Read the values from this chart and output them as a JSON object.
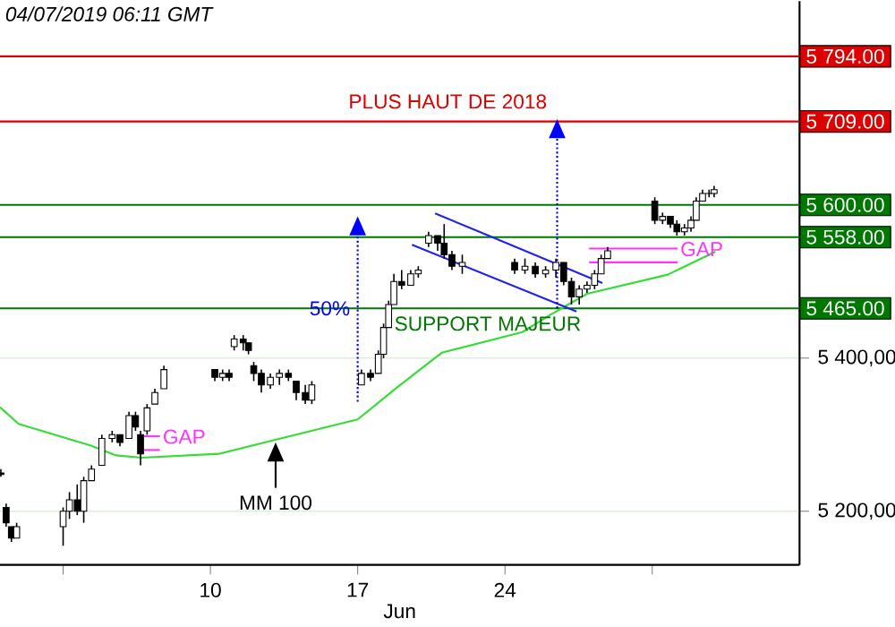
{
  "chart_data": {
    "type": "candlestick",
    "annotations": [
      "04/07/2019 06:11 GMT",
      "PLUS HAUT DE 2018",
      {
        "text": "50%",
        "x": "2019-06-17T00:00",
        "y": 5465
      },
      "SUPPORT MAJEUR",
      {
        "text": "MM 100",
        "x": "2019-06-13T02:24",
        "y": 5293
      }
    ],
    "xlabel": "Jun",
    "x": [
      "2019-05-31T01:00",
      "2019-05-31T07:00",
      "2019-05-31T13:00",
      "2019-05-31T19:00",
      "2019-06-03T00:00",
      "2019-06-03T07:12",
      "2019-06-03T16:05",
      "2019-06-03T23:31",
      "2019-06-04T08:24",
      "2019-06-04T20:10",
      "2019-06-05T07:55",
      "2019-06-05T16:48",
      "2019-06-06T03:07",
      "2019-06-06T10:34",
      "2019-06-06T16:19",
      "2019-06-06T23:46",
      "2019-06-07T08:38",
      "2019-06-07T18:58",
      "2019-06-10T05:02",
      "2019-06-10T13:55",
      "2019-06-10T21:22",
      "2019-06-11T03:07",
      "2019-06-11T13:26",
      "2019-06-11T19:26",
      "2019-06-12T01:26",
      "2019-06-12T10:05",
      "2019-06-12T20:24",
      "2019-06-13T06:43",
      "2019-06-13T17:02",
      "2019-06-14T01:55",
      "2019-06-14T12:14",
      "2019-06-14T19:41",
      "2019-06-17T04:19",
      "2019-06-17T14:38",
      "2019-06-17T23:31",
      "2019-06-18T05:31",
      "2019-06-18T11:17",
      "2019-06-18T17:17",
      "2019-06-19T02:10",
      "2019-06-19T12:29",
      "2019-06-19T21:07",
      "2019-06-20T08:53",
      "2019-06-20T19:12",
      "2019-06-21T02:38",
      "2019-06-21T11:31",
      "2019-06-21T23:17",
      "2019-06-24T11:02",
      "2019-06-24T22:48",
      "2019-06-25T10:34",
      "2019-06-25T22:19",
      "2019-06-26T10:05",
      "2019-06-26T18:58",
      "2019-06-27T03:50",
      "2019-06-27T12:43",
      "2019-06-27T21:36",
      "2019-06-28T06:14",
      "2019-06-28T13:41",
      "2019-06-28T21:07",
      "2019-07-01T02:53",
      "2019-07-01T11:46",
      "2019-07-01T20:38",
      "2019-07-02T04:05",
      "2019-07-02T12:43",
      "2019-07-02T20:10",
      "2019-07-03T02:10",
      "2019-07-03T09:22",
      "2019-07-03T16:48",
      "2019-07-03T22:34"
    ],
    "ohlc": [
      [
        5250,
        5255,
        5245,
        5248
      ],
      [
        5205,
        5210,
        5180,
        5185
      ],
      [
        5180,
        5180,
        5160,
        5165
      ],
      [
        5165,
        5185,
        5165,
        5180
      ],
      [
        5180,
        5205,
        5155,
        5200
      ],
      [
        5200,
        5225,
        5190,
        5215
      ],
      [
        5215,
        5235,
        5195,
        5200
      ],
      [
        5200,
        5245,
        5185,
        5240
      ],
      [
        5240,
        5260,
        5240,
        5255
      ],
      [
        5260,
        5300,
        5260,
        5295
      ],
      [
        5295,
        5305,
        5290,
        5300
      ],
      [
        5300,
        5300,
        5285,
        5290
      ],
      [
        5295,
        5330,
        5295,
        5325
      ],
      [
        5325,
        5330,
        5305,
        5310
      ],
      [
        5300,
        5305,
        5260,
        5275
      ],
      [
        5305,
        5340,
        5300,
        5335
      ],
      [
        5340,
        5360,
        5340,
        5355
      ],
      [
        5360,
        5390,
        5360,
        5385
      ],
      [
        5385,
        5385,
        5370,
        5375
      ],
      [
        5375,
        5385,
        5370,
        5380
      ],
      [
        5380,
        5385,
        5370,
        5375
      ],
      [
        5415,
        5430,
        5410,
        5425
      ],
      [
        5425,
        5430,
        5410,
        5420
      ],
      [
        5420,
        5420,
        5405,
        5410
      ],
      [
        5390,
        5395,
        5370,
        5380
      ],
      [
        5380,
        5385,
        5355,
        5365
      ],
      [
        5365,
        5380,
        5360,
        5375
      ],
      [
        5375,
        5385,
        5365,
        5380
      ],
      [
        5380,
        5385,
        5370,
        5375
      ],
      [
        5370,
        5370,
        5345,
        5355
      ],
      [
        5355,
        5365,
        5340,
        5345
      ],
      [
        5345,
        5370,
        5340,
        5365
      ],
      [
        5365,
        5385,
        5365,
        5380
      ],
      [
        5380,
        5385,
        5370,
        5375
      ],
      [
        5380,
        5410,
        5380,
        5405
      ],
      [
        5405,
        5445,
        5400,
        5440
      ],
      [
        5440,
        5475,
        5440,
        5470
      ],
      [
        5470,
        5510,
        5470,
        5500
      ],
      [
        5500,
        5515,
        5490,
        5495
      ],
      [
        5495,
        5515,
        5495,
        5510
      ],
      [
        5510,
        5520,
        5505,
        5515
      ],
      [
        5550,
        5565,
        5545,
        5560
      ],
      [
        5560,
        5560,
        5540,
        5550
      ],
      [
        5550,
        5575,
        5530,
        5535
      ],
      [
        5535,
        5540,
        5515,
        5520
      ],
      [
        5520,
        5535,
        5510,
        5525
      ],
      [
        5525,
        5530,
        5510,
        5515
      ],
      [
        5515,
        5530,
        5510,
        5520
      ],
      [
        5520,
        5525,
        5505,
        5510
      ],
      [
        5510,
        5520,
        5505,
        5515
      ],
      [
        5515,
        5530,
        5505,
        5525
      ],
      [
        5525,
        5525,
        5495,
        5500
      ],
      [
        5500,
        5505,
        5470,
        5480
      ],
      [
        5480,
        5495,
        5470,
        5490
      ],
      [
        5490,
        5500,
        5485,
        5495
      ],
      [
        5495,
        5515,
        5490,
        5510
      ],
      [
        5510,
        5535,
        5510,
        5530
      ],
      [
        5530,
        5545,
        5530,
        5540
      ],
      [
        5605,
        5610,
        5575,
        5580
      ],
      [
        5580,
        5590,
        5575,
        5585
      ],
      [
        5585,
        5585,
        5570,
        5575
      ],
      [
        5575,
        5580,
        5560,
        5565
      ],
      [
        5565,
        5575,
        5560,
        5570
      ],
      [
        5570,
        5585,
        5565,
        5580
      ],
      [
        5580,
        5610,
        5580,
        5605
      ],
      [
        5605,
        5620,
        5605,
        5615
      ],
      [
        5615,
        5620,
        5610,
        5615
      ],
      [
        5615,
        5625,
        5610,
        5620
      ]
    ],
    "series": [
      {
        "type": "line",
        "color": "#33dd33",
        "x": [
          "2019-05-31T00:00",
          "2019-05-31T21:07",
          "2019-06-04T06:58",
          "2019-06-05T12:29",
          "2019-06-06T17:46",
          "2019-06-10T09:36",
          "2019-06-13T00:58",
          "2019-06-17T00:00",
          "2019-06-18T20:10",
          "2019-06-20T23:46",
          "2019-06-24T19:55",
          "2019-06-26T04:19",
          "2019-06-27T21:36",
          "2019-07-01T17:46",
          "2019-07-04T00:00"
        ],
        "values": [
          5336,
          5314,
          5286,
          5273,
          5270,
          5275,
          5293,
          5320,
          5361,
          5407,
          5434,
          5457,
          5484,
          5509,
          5539
        ]
      },
      {
        "type": "line",
        "color": "#2222ee",
        "x": [
          "2019-06-20T16:19",
          "2019-06-28T15:07"
        ],
        "values": [
          5589,
          5498
        ]
      },
      {
        "type": "line",
        "color": "#2222ee",
        "x": [
          "2019-06-19T13:55",
          "2019-06-27T09:36"
        ],
        "values": [
          5548,
          5461
        ]
      },
      {
        "type": "line",
        "color": "#0000ff",
        "line_style": "dotted",
        "x": [
          "2019-06-17T00:00",
          "2019-06-17T00:00"
        ],
        "values": [
          5343,
          5582
        ]
      },
      {
        "type": "line",
        "color": "#0000ff",
        "line_style": "dotted",
        "x": [
          "2019-06-26T11:31",
          "2019-06-26T11:31"
        ],
        "values": [
          5465,
          5709
        ]
      },
      {
        "type": "line",
        "name": "GAP",
        "color": "#ff33ff",
        "x": [
          "2019-06-06T20:24",
          "2019-06-07T14:24"
        ],
        "values": [
          5298,
          5298
        ]
      },
      {
        "type": "line",
        "color": "#ff33ff",
        "x": [
          "2019-06-06T20:24",
          "2019-06-07T14:24"
        ],
        "values": [
          5280,
          5280
        ]
      },
      {
        "type": "line",
        "name": "GAP",
        "color": "#ff33ff",
        "x": [
          "2019-06-28T00:00",
          "2019-07-02T04:48"
        ],
        "values": [
          5543,
          5543
        ]
      },
      {
        "type": "line",
        "color": "#ff33ff",
        "x": [
          "2019-06-28T00:00",
          "2019-07-02T04:48"
        ],
        "values": [
          5525,
          5525
        ]
      }
    ],
    "ref_lines": [
      {
        "axis": "y",
        "value": 5794,
        "label": "5 794.00",
        "color": "#dd0000"
      },
      {
        "axis": "y",
        "value": 5709,
        "label": "5 709.00",
        "color": "#dd0000"
      },
      {
        "axis": "y",
        "value": 5600,
        "label": "5 600.00",
        "color": "#007700"
      },
      {
        "axis": "y",
        "value": 5558,
        "label": "5 558.00",
        "color": "#007700"
      },
      {
        "axis": "y",
        "value": 5465,
        "label": "5 465.00",
        "color": "#007700"
      }
    ],
    "xlim": [
      "2019-05-31T00:00",
      "2019-07-08T00:00"
    ],
    "ylim": [
      5130,
      5866
    ],
    "xticks": [
      {
        "value": "2019-06-03",
        "label": null
      },
      {
        "value": "2019-06-10",
        "label": "10"
      },
      {
        "value": "2019-06-17",
        "label": "17"
      },
      {
        "value": "2019-06-24",
        "label": "24"
      },
      {
        "value": "2019-07-01",
        "label": null
      }
    ],
    "yticks": [
      {
        "value": 5200,
        "label": "5 200,00"
      },
      {
        "value": 5400,
        "label": "5 400,00"
      }
    ],
    "grid": "y"
  }
}
